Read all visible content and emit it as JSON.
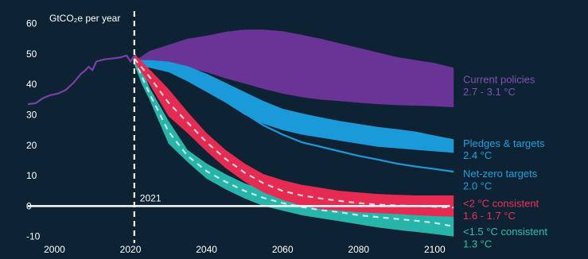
{
  "chart_data": {
    "type": "area",
    "ylabel": "GtCO₂e per year",
    "ylim": [
      -14,
      62
    ],
    "xlim": [
      1993,
      2106
    ],
    "x_ticks": [
      2000,
      2020,
      2040,
      2060,
      2080,
      2100
    ],
    "y_ticks": [
      60,
      50,
      40,
      30,
      20,
      10,
      0,
      -10
    ],
    "x_tick_labels": [
      "2000",
      "2020",
      "2040",
      "2060",
      "2080",
      "2100"
    ],
    "y_tick_labels": [
      "60",
      "50",
      "40",
      "30",
      "20",
      "10",
      "0",
      "-10"
    ],
    "marker": {
      "x": 2021,
      "label": "2021"
    },
    "historical": {
      "color": "#7b3fa8",
      "x": [
        1993,
        1995,
        1997,
        1999,
        2001,
        2003,
        2005,
        2007,
        2008,
        2009,
        2010,
        2011,
        2013,
        2015,
        2017,
        2019,
        2020,
        2021
      ],
      "y": [
        33.5,
        33.8,
        35.5,
        36.5,
        37,
        38.2,
        40.5,
        43.5,
        44.5,
        45.8,
        44.7,
        47.5,
        48.2,
        48.5,
        48.8,
        49.5,
        47.5,
        49.5
      ]
    },
    "series": [
      {
        "name": "Current policies",
        "value_label": "2.7 - 3.1 °C",
        "color": "#6a3396",
        "label_color": "#8550b8",
        "kind": "band",
        "x": [
          2022,
          2025,
          2030,
          2035,
          2040,
          2045,
          2050,
          2055,
          2060,
          2065,
          2070,
          2075,
          2080,
          2085,
          2090,
          2095,
          2100,
          2105
        ],
        "upper": [
          48.5,
          51,
          53,
          55,
          56,
          57.3,
          58,
          58,
          57.5,
          56.3,
          55,
          53.5,
          52,
          50.5,
          49,
          48,
          47,
          45.5
        ],
        "lower": [
          47,
          47,
          46.5,
          45.5,
          44,
          42,
          40.3,
          38.5,
          37,
          35.8,
          35,
          34.5,
          34,
          33.5,
          33.2,
          33,
          32.8,
          32.5
        ]
      },
      {
        "name": "Pledges & targets",
        "value_label": "2.4 °C",
        "color": "#1a9ad8",
        "label_color": "#1aa3e0",
        "kind": "band",
        "x": [
          2022,
          2025,
          2030,
          2035,
          2040,
          2045,
          2050,
          2055,
          2060,
          2065,
          2070,
          2075,
          2080,
          2085,
          2090,
          2095,
          2100,
          2105
        ],
        "upper": [
          48,
          48,
          47.5,
          46,
          43.5,
          40.5,
          37.5,
          34.5,
          32,
          30.5,
          29.2,
          28,
          27,
          26,
          25.3,
          24.5,
          23.2,
          22
        ],
        "lower": [
          46,
          45.5,
          44,
          41,
          37.5,
          34,
          30,
          27,
          25,
          23.5,
          22.5,
          21.5,
          20.5,
          19.5,
          19,
          18.5,
          18,
          17.5
        ]
      },
      {
        "name": "Net-zero targets",
        "value_label": "2.0 °C",
        "color": "#1a9ad8",
        "label_color": "#1aa3e0",
        "kind": "line",
        "x": [
          2022,
          2025,
          2030,
          2035,
          2040,
          2045,
          2050,
          2055,
          2060,
          2065,
          2070,
          2075,
          2080,
          2085,
          2090,
          2095,
          2100,
          2105
        ],
        "y": [
          47,
          46.5,
          45,
          43,
          39.5,
          35,
          30.5,
          26.5,
          23.5,
          21,
          19.5,
          18,
          16.5,
          15.3,
          14,
          13,
          12.2,
          11.3
        ]
      },
      {
        "name": "<2 °C consistent",
        "value_label": "1.6 - 1.7 °C",
        "color": "#e52b52",
        "label_color": "#f0305a",
        "kind": "band_dashed",
        "x": [
          2021,
          2025,
          2030,
          2035,
          2040,
          2045,
          2050,
          2055,
          2060,
          2065,
          2070,
          2075,
          2080,
          2085,
          2090,
          2095,
          2100,
          2105
        ],
        "upper": [
          50,
          45,
          38.5,
          31,
          24,
          18.5,
          14,
          10.5,
          8.5,
          7,
          6,
          5,
          4.5,
          4,
          3.7,
          3.5,
          3.5,
          3.5
        ],
        "lower": [
          47.5,
          40,
          29.5,
          24,
          18,
          12.5,
          8,
          4.5,
          2,
          0.2,
          -1,
          -1.5,
          -2,
          -2.3,
          -2.6,
          -3,
          -3.3,
          -3.5
        ],
        "center": [
          48.5,
          42.5,
          34,
          27.5,
          21,
          15.5,
          11,
          7.5,
          5,
          3.5,
          2.5,
          1.7,
          1,
          0.5,
          0.2,
          0,
          -0.2,
          -0.5
        ]
      },
      {
        "name": "<1.5 °C consistent",
        "value_label": "1.3 °C",
        "color": "#26b5a8",
        "label_color": "#2bc0b0",
        "kind": "band_dashed",
        "x": [
          2021,
          2023,
          2025,
          2030,
          2035,
          2040,
          2045,
          2050,
          2055,
          2060,
          2065,
          2070,
          2075,
          2080,
          2085,
          2090,
          2095,
          2100,
          2105
        ],
        "upper": [
          51,
          45,
          39,
          28,
          18.5,
          14,
          10.5,
          7.5,
          5.5,
          3.5,
          2.5,
          1.7,
          1,
          0.2,
          -0.3,
          -0.8,
          -1.5,
          -2.5,
          -3.5
        ],
        "lower": [
          46.5,
          40,
          35,
          20.5,
          14.5,
          9,
          5.5,
          2.5,
          0,
          -1.5,
          -3,
          -4,
          -5,
          -6,
          -7,
          -7.8,
          -8.5,
          -9.2,
          -10
        ],
        "center": [
          48.5,
          42.5,
          37,
          24.5,
          16.5,
          11.5,
          8,
          5,
          2.7,
          1,
          -0.3,
          -1.3,
          -2,
          -3,
          -3.6,
          -4.2,
          -4.8,
          -5.5,
          -6.7
        ]
      }
    ]
  }
}
